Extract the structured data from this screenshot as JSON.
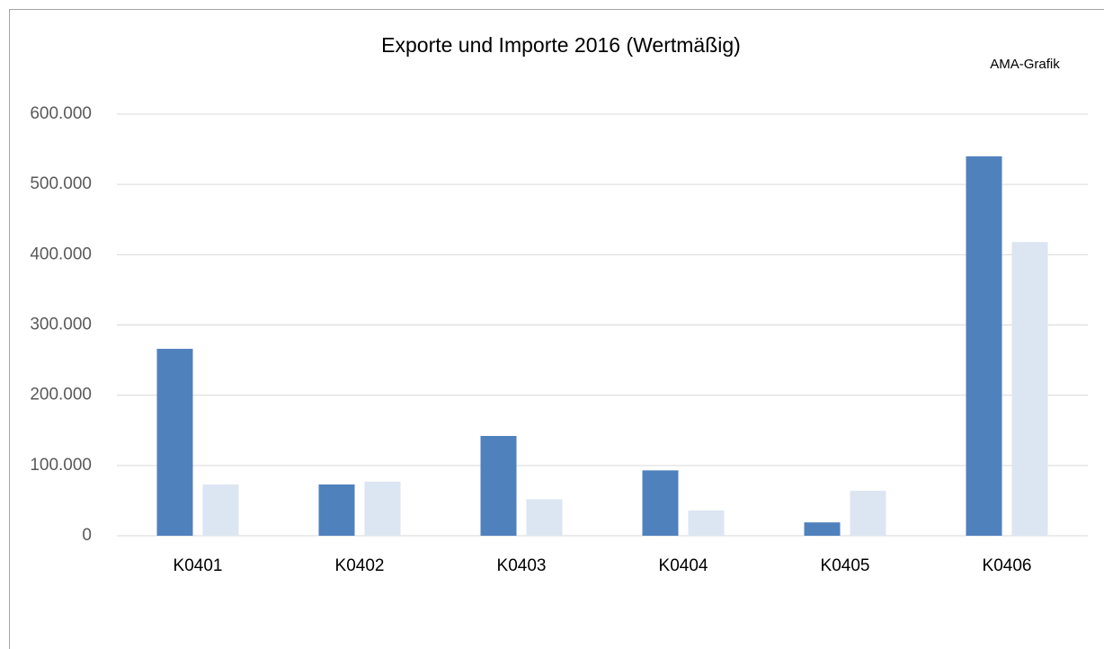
{
  "chart_data": {
    "type": "bar",
    "title": "Exporte und Importe 2016 (Wertmäßig)",
    "annotation": "AMA-Grafik",
    "categories": [
      "K0401",
      "K0402",
      "K0403",
      "K0404",
      "K0405",
      "K0406"
    ],
    "series": [
      {
        "color": "#4f81bd",
        "values": [
          266000,
          73000,
          142000,
          93000,
          19000,
          540000
        ]
      },
      {
        "color": "#dce6f2",
        "values": [
          73000,
          77000,
          52000,
          36000,
          64000,
          418000
        ]
      }
    ],
    "ylim": [
      0,
      600000
    ],
    "yticks": [
      0,
      {
        "value": 100000,
        "label": "100.000"
      },
      {
        "value": 200000,
        "label": "200.000"
      },
      {
        "value": 300000,
        "label": "300.000"
      },
      {
        "value": 400000,
        "label": "400.000"
      },
      {
        "value": 500000,
        "label": "500.000"
      },
      {
        "value": 600000,
        "label": "600.000"
      }
    ],
    "grid": true
  }
}
